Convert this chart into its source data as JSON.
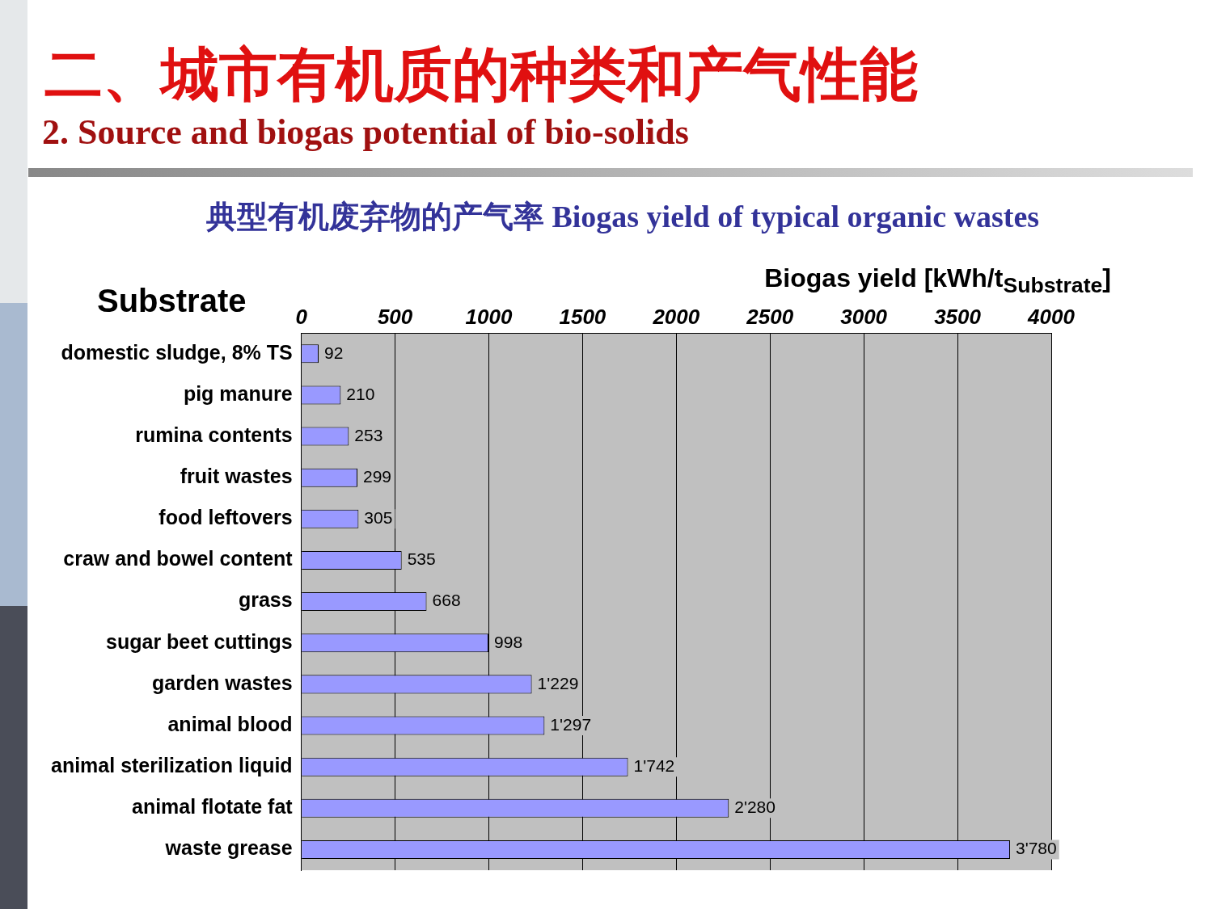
{
  "chart_data": {
    "type": "bar",
    "orientation": "horizontal",
    "title": "二、城市有机质的种类和产气性能",
    "subtitle": "2. Source and biogas potential of bio-solids",
    "annotations": [
      "典型有机废弃物的产气率  Biogas yield of typical organic wastes"
    ],
    "xlabel": "Biogas yield [kWh/t$_{Substrate}$]",
    "ylabel": "Substrate",
    "categories": [
      "domestic sludge, 8% TS",
      "pig manure",
      "rumina contents",
      "fruit wastes",
      "food leftovers",
      "craw and bowel content",
      "grass",
      "sugar beet cuttings",
      "garden wastes",
      "animal blood",
      "animal sterilization liquid",
      "animal flotate fat",
      "waste grease"
    ],
    "values": [
      92,
      210,
      253,
      299,
      305,
      535,
      668,
      998,
      1229,
      1297,
      1742,
      2280,
      3780
    ],
    "value_labels": [
      "92",
      "210",
      "253",
      "299",
      "305",
      "535",
      "668",
      "998",
      "1'229",
      "1'297",
      "1'742",
      "2'280",
      "3'780"
    ],
    "color": "#9999ff",
    "xlim": [
      0,
      4000
    ],
    "xticks": [
      0,
      500,
      1000,
      1500,
      2000,
      2500,
      3000,
      3500,
      4000
    ],
    "grid": "x",
    "legend": false
  }
}
